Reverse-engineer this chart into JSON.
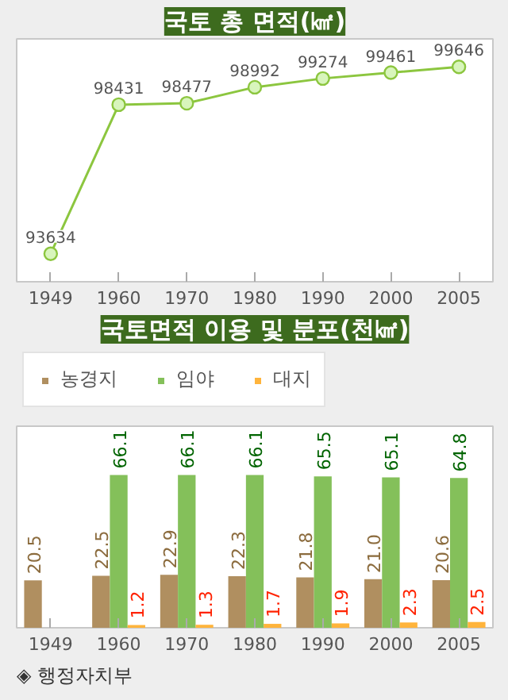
{
  "chart_data": [
    {
      "type": "line",
      "title": "국토 총 면적(㎢)",
      "categories": [
        "1949",
        "1960",
        "1970",
        "1980",
        "1990",
        "2000",
        "2005"
      ],
      "series": [
        {
          "color": "#8cc63f",
          "values": [
            93634,
            98431,
            98477,
            98992,
            99274,
            99461,
            99646
          ]
        }
      ],
      "data_labels": true,
      "marker": "circle",
      "line_style": "solid",
      "grid": false,
      "tick_labels": "x"
    },
    {
      "type": "bar",
      "title": "국토면적 이용 및 분포(천㎢)",
      "categories": [
        "1949",
        "1960",
        "1970",
        "1980",
        "1990",
        "2000",
        "2005"
      ],
      "series": [
        {
          "name": "농경지",
          "color": "#b08f60",
          "values": [
            20.5,
            22.5,
            22.9,
            22.3,
            21.8,
            21.0,
            20.6
          ],
          "value_labels": [
            "20.5",
            "22.5",
            "22.9",
            "22.3",
            "21.8",
            "21.0",
            "20.6"
          ]
        },
        {
          "name": "임야",
          "color": "#84c05a",
          "values": [
            null,
            66.1,
            66.1,
            66.1,
            65.5,
            65.1,
            64.8
          ]
        },
        {
          "name": "대지",
          "color": "#ffb43c",
          "values": [
            null,
            1.2,
            1.3,
            1.7,
            1.9,
            2.3,
            2.5
          ]
        }
      ],
      "data_labels": true,
      "legend": "top left",
      "grid": false,
      "tick_labels": "x",
      "annotations": [
        "◈ 행정자치부"
      ]
    }
  ]
}
